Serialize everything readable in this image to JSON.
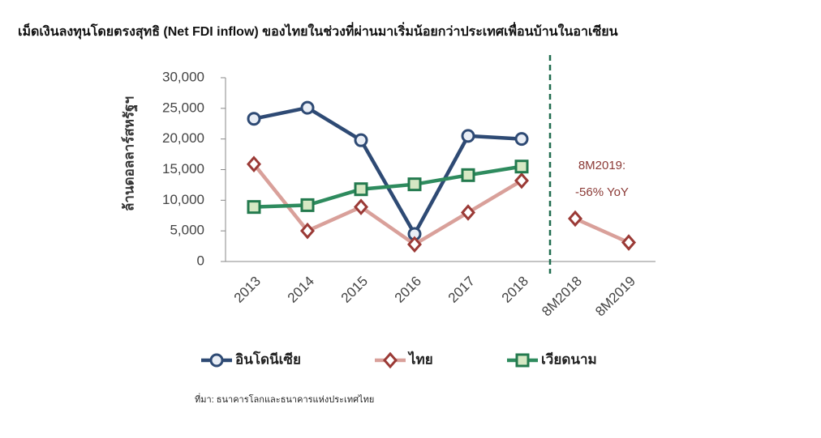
{
  "chart_data": {
    "type": "line",
    "title": "เม็ดเงินลงทุนโดยตรงสุทธิ (Net FDI inflow) ของไทยในช่วงที่ผ่านมาเริ่มน้อยกว่าประเทศเพื่อนบ้านในอาเซียน",
    "y_label": "ล้านดอลลาร์สหรัฐฯ",
    "categories": [
      "2013",
      "2014",
      "2015",
      "2016",
      "2017",
      "2018",
      "8M2018",
      "8M2019"
    ],
    "series": [
      {
        "name": "อินโดนีเซีย",
        "color": "#2e4a74",
        "marker": "circle",
        "marker_fill": "#e9eef6",
        "values": [
          23300,
          25100,
          19800,
          4500,
          20500,
          20000,
          null,
          null
        ]
      },
      {
        "name": "ไทย",
        "color": "#d9a09a",
        "marker": "diamond",
        "marker_stroke": "#9b3a36",
        "marker_fill": "#ffffff",
        "values": [
          15900,
          5000,
          8900,
          2800,
          8000,
          13200,
          7000,
          3100
        ]
      },
      {
        "name": "เวียดนาม",
        "color": "#2e8b5e",
        "marker": "square",
        "marker_stroke": "#237a4e",
        "marker_fill": "#d6e8c4",
        "values": [
          8900,
          9200,
          11800,
          12600,
          14100,
          15500,
          null,
          null
        ]
      }
    ],
    "ylim": [
      0,
      30000
    ],
    "yticks": [
      0,
      {
        "value": 5000,
        "label": "5,000"
      },
      {
        "value": 10000,
        "label": "10,000"
      },
      {
        "value": 15000,
        "label": "15,000"
      },
      {
        "value": 20000,
        "label": "20,000"
      },
      {
        "value": 25000,
        "label": "25,000"
      },
      {
        "value": 30000,
        "label": "30,000"
      }
    ],
    "divider": {
      "after_category": 5,
      "color": "#1f6b4e"
    },
    "annotations": [
      "8M2019:",
      "-56% YoY"
    ],
    "annotation_color": "#8b3a36",
    "legend": "bottom",
    "source": "ที่มา: ธนาคารโลกและธนาคารแห่งประเทศไทย"
  }
}
